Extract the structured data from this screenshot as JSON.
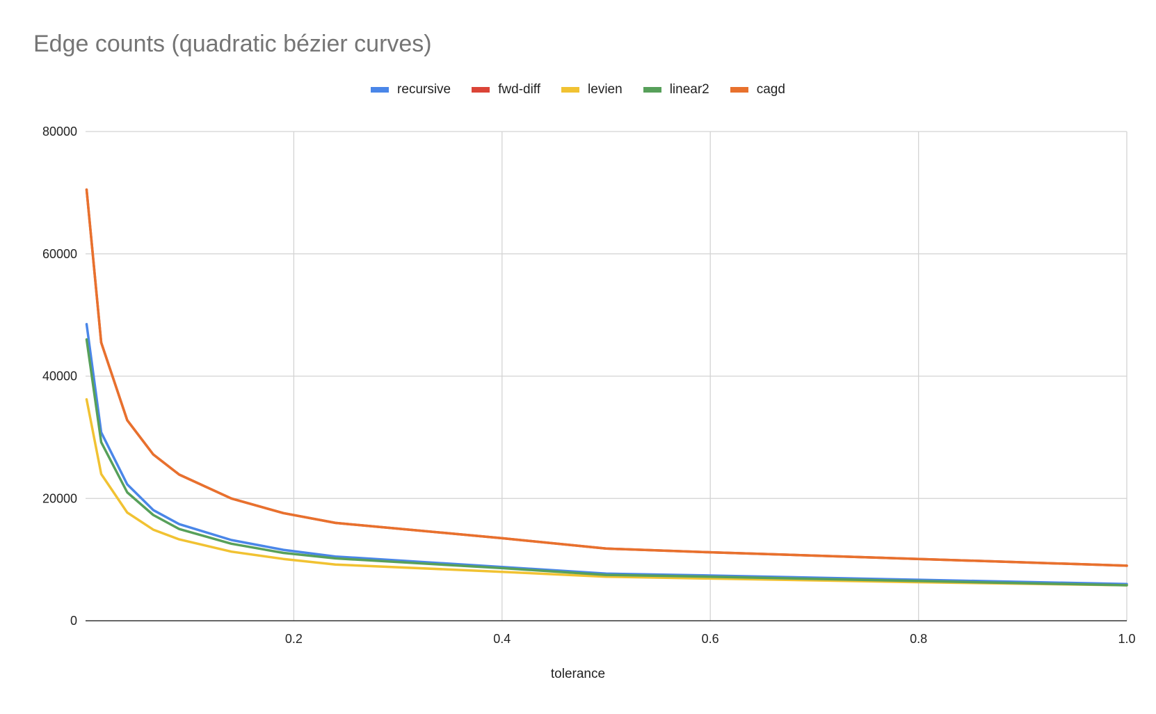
{
  "chart_data": {
    "type": "line",
    "title": "Edge counts (quadratic bézier curves)",
    "xlabel": "tolerance",
    "ylabel": "",
    "xlim": [
      0,
      1.0
    ],
    "ylim": [
      0,
      80000
    ],
    "x_ticks": [
      "0.2",
      "0.4",
      "0.6",
      "0.8",
      "1.0"
    ],
    "y_ticks": [
      "0",
      "20000",
      "40000",
      "60000",
      "80000"
    ],
    "grid": true,
    "legend_position": "top",
    "x": [
      0.001,
      0.015,
      0.04,
      0.065,
      0.09,
      0.14,
      0.19,
      0.24,
      0.4,
      0.5,
      0.6,
      0.8,
      1.0
    ],
    "series": [
      {
        "name": "recursive",
        "color": "#4a86e8",
        "values": [
          48500,
          30800,
          22300,
          18100,
          15800,
          13200,
          11600,
          10500,
          8800,
          7700,
          7400,
          6700,
          6000
        ]
      },
      {
        "name": "fwd-diff",
        "color": "#db4437",
        "values": [
          70500,
          45500,
          32800,
          27200,
          23900,
          20000,
          17600,
          16000,
          13500,
          11800,
          11200,
          10100,
          9000
        ]
      },
      {
        "name": "levien",
        "color": "#f1c232",
        "values": [
          36200,
          24000,
          17700,
          14900,
          13300,
          11300,
          10100,
          9200,
          8000,
          7200,
          6900,
          6300,
          5800
        ]
      },
      {
        "name": "linear2",
        "color": "#57a05a",
        "values": [
          46000,
          29200,
          21000,
          17300,
          15000,
          12600,
          11100,
          10200,
          8600,
          7500,
          7200,
          6500,
          5800
        ]
      },
      {
        "name": "cagd",
        "color": "#e8712d",
        "values": [
          70500,
          45500,
          32800,
          27200,
          23900,
          20000,
          17600,
          16000,
          13500,
          11800,
          11200,
          10100,
          9000
        ]
      }
    ]
  }
}
